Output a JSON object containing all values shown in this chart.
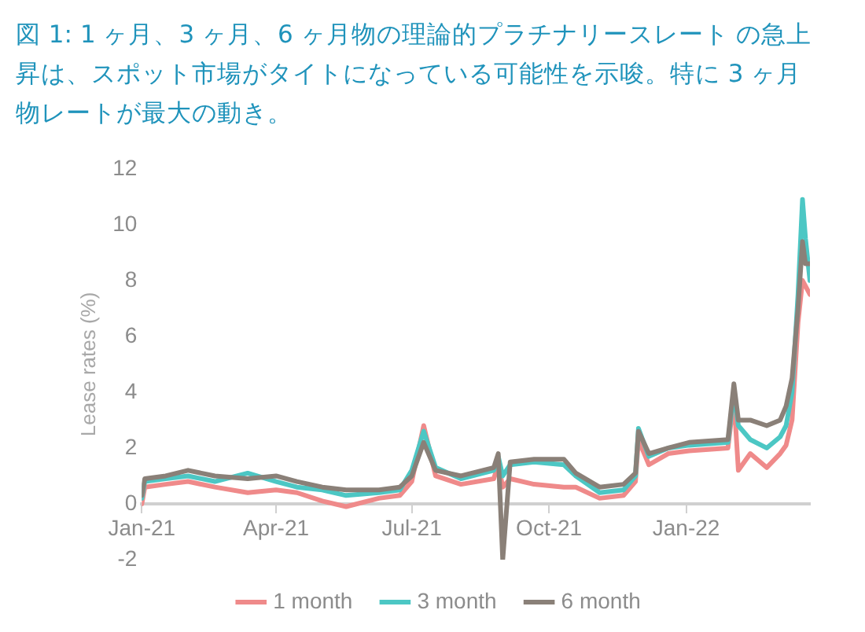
{
  "chart_data": {
    "type": "line",
    "title": "図 1: 1 ヶ月、3 ヶ月、6 ヶ月物の理論的プラチナリースレート の急上昇は、スポット市場がタイトになっている可能性を示唆。特に 3 ヶ月物レートが最大の動き。",
    "ylabel": "Lease rates (%)",
    "x": [
      "2021-01-01",
      "2021-01-03",
      "2021-01-17",
      "2021-02-01",
      "2021-02-19",
      "2021-03-13",
      "2021-04-01",
      "2021-04-15",
      "2021-05-02",
      "2021-05-18",
      "2021-06-09",
      "2021-06-23",
      "2021-07-01",
      "2021-07-09",
      "2021-07-17",
      "2021-08-03",
      "2021-08-25",
      "2021-08-28",
      "2021-08-31",
      "2021-09-05",
      "2021-09-21",
      "2021-10-11",
      "2021-10-19",
      "2021-11-04",
      "2021-11-20",
      "2021-11-28",
      "2021-11-30",
      "2021-12-07",
      "2021-12-20",
      "2022-01-03",
      "2022-01-29",
      "2022-02-02",
      "2022-02-05",
      "2022-02-13",
      "2022-02-24",
      "2022-03-05",
      "2022-03-09",
      "2022-03-13",
      "2022-03-17",
      "2022-03-20",
      "2022-03-22",
      "2022-03-25"
    ],
    "series": [
      {
        "name": "1 month",
        "color": "#ef8a8a",
        "values": [
          0.0,
          0.6,
          0.7,
          0.8,
          0.6,
          0.4,
          0.5,
          0.4,
          0.1,
          -0.1,
          0.2,
          0.3,
          0.8,
          2.8,
          1.0,
          0.7,
          0.9,
          1.4,
          0.6,
          0.9,
          0.7,
          0.6,
          0.6,
          0.2,
          0.3,
          0.8,
          2.3,
          1.4,
          1.8,
          1.9,
          2.0,
          3.8,
          1.2,
          1.8,
          1.3,
          1.8,
          2.1,
          3.0,
          6.5,
          8.0,
          7.8,
          7.5
        ]
      },
      {
        "name": "3 month",
        "color": "#4cc7c4",
        "values": [
          0.2,
          0.8,
          0.9,
          1.0,
          0.8,
          1.1,
          0.8,
          0.6,
          0.5,
          0.3,
          0.4,
          0.5,
          1.2,
          2.6,
          1.3,
          0.9,
          1.2,
          1.7,
          1.0,
          1.4,
          1.5,
          1.4,
          1.0,
          0.4,
          0.5,
          1.0,
          2.7,
          1.7,
          2.0,
          2.1,
          2.2,
          4.0,
          2.8,
          2.3,
          2.0,
          2.4,
          2.8,
          4.0,
          7.5,
          10.9,
          9.5,
          8.0
        ]
      },
      {
        "name": "6 month",
        "color": "#8a8078",
        "values": [
          0.3,
          0.9,
          1.0,
          1.2,
          1.0,
          0.9,
          1.0,
          0.8,
          0.6,
          0.5,
          0.5,
          0.6,
          1.0,
          2.2,
          1.2,
          1.0,
          1.3,
          1.8,
          -2.0,
          1.5,
          1.6,
          1.6,
          1.1,
          0.6,
          0.7,
          1.1,
          2.6,
          1.8,
          2.0,
          2.2,
          2.3,
          4.3,
          3.0,
          3.0,
          2.8,
          3.0,
          3.5,
          4.5,
          7.0,
          9.4,
          8.6,
          8.6
        ]
      }
    ],
    "xlim": [
      "2021-01-01",
      "2022-03-25"
    ],
    "xticks": [
      {
        "value": "2021-01-01",
        "label": "Jan-21"
      },
      {
        "value": "2021-04-01",
        "label": "Apr-21"
      },
      {
        "value": "2021-07-01",
        "label": "Jul-21"
      },
      {
        "value": "2021-10-01",
        "label": "Oct-21"
      },
      {
        "value": "2022-01-01",
        "label": "Jan-22"
      }
    ],
    "ylim": [
      -2,
      12
    ],
    "yticks": [
      -2,
      0,
      2,
      4,
      6,
      8,
      10,
      12
    ],
    "grid": false,
    "legend": "bottom",
    "marker": "none",
    "line_style": "solid"
  }
}
